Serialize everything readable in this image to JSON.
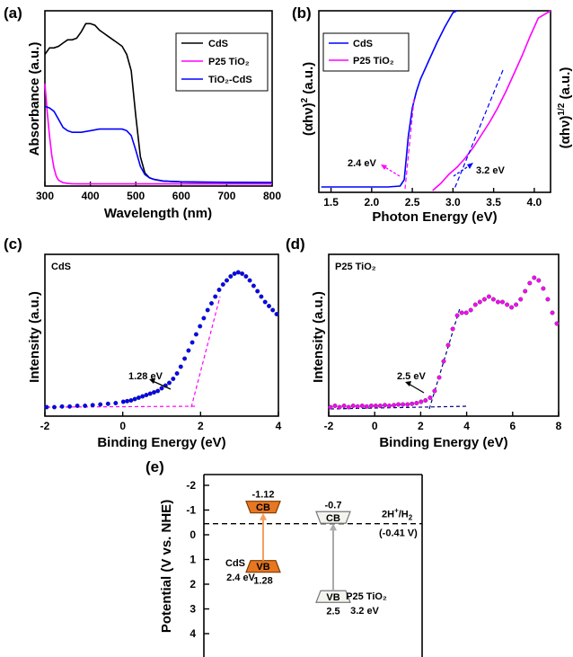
{
  "chart_data": [
    {
      "panel": "(a)",
      "type": "line",
      "xlabel": "Wavelength (nm)",
      "ylabel": "Absorbance (a.u.)",
      "xlim": [
        300,
        800
      ],
      "xticks": [
        "300",
        "400",
        "500",
        "600",
        "700",
        "800"
      ],
      "legend_position": "top-right",
      "series": [
        {
          "name": "CdS",
          "color": "#000000",
          "x": [
            300,
            310,
            320,
            330,
            340,
            350,
            360,
            370,
            380,
            390,
            400,
            410,
            420,
            430,
            440,
            450,
            460,
            470,
            480,
            490,
            500,
            510,
            520,
            530,
            540,
            560,
            600,
            650,
            700,
            750,
            800
          ],
          "y": [
            0.8,
            0.84,
            0.84,
            0.85,
            0.87,
            0.89,
            0.89,
            0.9,
            0.94,
            0.99,
            0.99,
            0.98,
            0.95,
            0.93,
            0.91,
            0.89,
            0.87,
            0.85,
            0.8,
            0.7,
            0.42,
            0.17,
            0.07,
            0.04,
            0.03,
            0.02,
            0.015,
            0.012,
            0.011,
            0.01,
            0.01
          ]
        },
        {
          "name": "P25 TiO₂",
          "color": "#ff00ff",
          "x": [
            300,
            305,
            310,
            315,
            320,
            325,
            330,
            340,
            350,
            360,
            380,
            400,
            450,
            500,
            600,
            700,
            800
          ],
          "y": [
            0.62,
            0.45,
            0.3,
            0.18,
            0.1,
            0.05,
            0.025,
            0.01,
            0.005,
            0.003,
            0.002,
            0.002,
            0.002,
            0.002,
            0.002,
            0.002,
            0.002
          ]
        },
        {
          "name": "TiO₂-CdS",
          "color": "#0000ff",
          "x": [
            300,
            310,
            320,
            330,
            340,
            350,
            360,
            370,
            380,
            400,
            420,
            440,
            460,
            470,
            480,
            490,
            500,
            510,
            520,
            530,
            540,
            560,
            600,
            700,
            800
          ],
          "y": [
            0.48,
            0.47,
            0.45,
            0.4,
            0.35,
            0.33,
            0.32,
            0.32,
            0.32,
            0.33,
            0.34,
            0.34,
            0.34,
            0.34,
            0.33,
            0.3,
            0.21,
            0.11,
            0.06,
            0.04,
            0.03,
            0.02,
            0.015,
            0.012,
            0.011
          ]
        }
      ]
    },
    {
      "panel": "(b)",
      "type": "line",
      "xlabel": "Photon Energy (eV)",
      "ylabel_left": "(αhν)² (a.u.)",
      "ylabel_right": "(αhν)^1/2 (a.u.)",
      "xlim": [
        1.35,
        4.2
      ],
      "xticks": [
        "1.5",
        "2.0",
        "2.5",
        "3.0",
        "3.5",
        "4.0"
      ],
      "legend_position": "top-left",
      "series": [
        {
          "name": "CdS",
          "color": "#0000ff",
          "x": [
            1.38,
            1.8,
            2.2,
            2.35,
            2.4,
            2.45,
            2.5,
            2.55,
            2.6,
            2.7,
            2.8,
            2.9,
            3.0,
            3.05
          ],
          "y": [
            0.02,
            0.02,
            0.02,
            0.025,
            0.06,
            0.3,
            0.46,
            0.55,
            0.62,
            0.72,
            0.82,
            0.91,
            0.99,
            1.02
          ]
        },
        {
          "name": "P25 TiO₂",
          "color": "#ff00ff",
          "x": [
            2.75,
            2.85,
            2.95,
            3.05,
            3.15,
            3.25,
            3.35,
            3.45,
            3.55,
            3.65,
            3.75,
            3.85,
            3.95,
            4.05,
            4.2
          ],
          "y": [
            0.0,
            0.04,
            0.09,
            0.13,
            0.18,
            0.24,
            0.31,
            0.38,
            0.46,
            0.55,
            0.65,
            0.75,
            0.86,
            0.96,
            1.0
          ]
        }
      ],
      "annotations": [
        "2.4 eV",
        "3.2 eV"
      ]
    },
    {
      "panel": "(c)",
      "type": "scatter",
      "xlabel": "Binding Energy (eV)",
      "ylabel": "Intensity (a.u.)",
      "xlim": [
        -2,
        4
      ],
      "xticks": [
        "-2",
        "0",
        "2",
        "4"
      ],
      "label": "CdS",
      "annotation": "1.28 eV",
      "series": [
        {
          "name": "",
          "color": "#0000ff",
          "x": [
            -2,
            -1.8,
            -1.6,
            -1.4,
            -1.2,
            -1.0,
            -0.8,
            -0.6,
            -0.4,
            -0.2,
            0,
            0.1,
            0.2,
            0.3,
            0.4,
            0.5,
            0.6,
            0.7,
            0.8,
            0.9,
            1.0,
            1.1,
            1.2,
            1.3,
            1.4,
            1.5,
            1.6,
            1.7,
            1.8,
            1.9,
            2.0,
            2.1,
            2.2,
            2.3,
            2.4,
            2.5,
            2.6,
            2.7,
            2.8,
            2.9,
            3.0,
            3.1,
            3.2,
            3.3,
            3.4,
            3.5,
            3.6,
            3.7,
            3.8,
            3.9,
            4.0
          ],
          "y": [
            0.0,
            0.0,
            0.005,
            0.005,
            0.01,
            0.01,
            0.015,
            0.02,
            0.025,
            0.03,
            0.04,
            0.045,
            0.05,
            0.06,
            0.07,
            0.08,
            0.09,
            0.1,
            0.11,
            0.12,
            0.14,
            0.16,
            0.18,
            0.21,
            0.25,
            0.3,
            0.36,
            0.42,
            0.48,
            0.54,
            0.6,
            0.66,
            0.72,
            0.77,
            0.82,
            0.87,
            0.91,
            0.94,
            0.97,
            0.99,
            1.0,
            0.99,
            0.97,
            0.94,
            0.9,
            0.86,
            0.82,
            0.78,
            0.75,
            0.72,
            0.69
          ]
        }
      ]
    },
    {
      "panel": "(d)",
      "type": "scatter",
      "xlabel": "Binding Energy (eV)",
      "ylabel": "Intensity (a.u.)",
      "xlim": [
        -2,
        8
      ],
      "xticks": [
        "-2",
        "0",
        "2",
        "4",
        "6",
        "8"
      ],
      "label": "P25 TiO₂",
      "annotation": "2.5 eV",
      "series": [
        {
          "name": "",
          "color": "#ff00ff",
          "x": [
            -2,
            -1.8,
            -1.6,
            -1.4,
            -1.2,
            -1.0,
            -0.8,
            -0.6,
            -0.4,
            -0.2,
            0,
            0.2,
            0.4,
            0.6,
            0.8,
            1.0,
            1.2,
            1.4,
            1.6,
            1.8,
            2.0,
            2.2,
            2.4,
            2.6,
            2.8,
            3.0,
            3.2,
            3.4,
            3.6,
            3.8,
            4.0,
            4.2,
            4.4,
            4.6,
            4.8,
            5.0,
            5.2,
            5.4,
            5.6,
            5.8,
            6.0,
            6.2,
            6.4,
            6.6,
            6.8,
            7.0,
            7.2,
            7.4,
            7.6,
            7.8,
            8.0
          ],
          "y": [
            0.0,
            0.01,
            0.0,
            0.01,
            0.0,
            0.01,
            0.005,
            0.01,
            0.005,
            0.01,
            0.01,
            0.01,
            0.015,
            0.01,
            0.015,
            0.02,
            0.02,
            0.02,
            0.025,
            0.03,
            0.04,
            0.05,
            0.07,
            0.12,
            0.22,
            0.34,
            0.46,
            0.58,
            0.68,
            0.7,
            0.7,
            0.72,
            0.76,
            0.78,
            0.8,
            0.82,
            0.8,
            0.78,
            0.78,
            0.76,
            0.74,
            0.76,
            0.8,
            0.86,
            0.92,
            0.96,
            0.94,
            0.88,
            0.8,
            0.7,
            0.62
          ]
        }
      ]
    },
    {
      "panel": "(e)",
      "type": "diagram",
      "ylabel": "Potential (V vs. NHE)",
      "ylim": [
        -2.3,
        4.3
      ],
      "yticks": [
        "-2",
        "-1",
        "0",
        "1",
        "2",
        "3",
        "4"
      ],
      "reference_line": {
        "value": -0.41,
        "label": "2H⁺/H₂",
        "value_label": "(-0.41 V)"
      },
      "materials": [
        {
          "name": "CdS",
          "gap_label": "2.4 eV",
          "cb": -1.12,
          "vb": 1.28,
          "cb_label": "-1.12",
          "vb_label": "1.28",
          "color": "#e87722"
        },
        {
          "name": "P25 TiO₂",
          "gap_label": "3.2 eV",
          "cb": -0.7,
          "vb": 2.5,
          "cb_label": "-0.7",
          "vb_label": "2.5",
          "color": "#f4f4ee"
        }
      ],
      "cb_text": "CB",
      "vb_text": "VB"
    }
  ]
}
